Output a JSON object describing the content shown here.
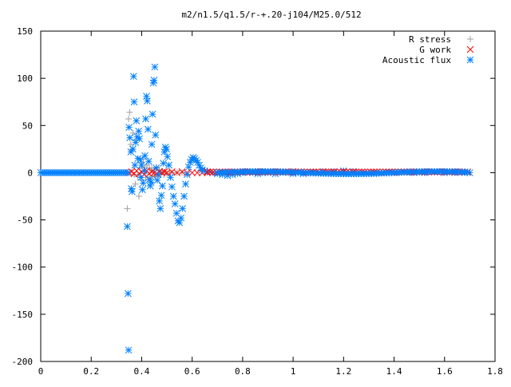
{
  "chart_data": {
    "type": "scatter",
    "title": "m2/n1.5/q1.5/r-+.20-j104/M25.0/512",
    "xlabel": "",
    "ylabel": "",
    "xlim": [
      0,
      1.8
    ],
    "ylim": [
      -200,
      150
    ],
    "xticks": [
      0,
      0.2,
      0.4,
      0.6,
      0.8,
      1,
      1.2,
      1.4,
      1.6,
      1.8
    ],
    "xtick_labels": [
      "0",
      "0.2",
      "0.4",
      "0.6",
      "0.8",
      "1",
      "1.2",
      "1.4",
      "1.6",
      "1.8"
    ],
    "yticks": [
      -200,
      -150,
      -100,
      -50,
      0,
      50,
      100,
      150
    ],
    "ytick_labels": [
      "-200",
      "-150",
      "-100",
      "-50",
      "0",
      "50",
      "100",
      "150"
    ],
    "grid": false,
    "legend_position": "top-right",
    "series": [
      {
        "name": "R stress",
        "marker": "plus",
        "color": "#a0a0a0",
        "points": [
          [
            0.343,
            -38
          ],
          [
            0.348,
            57
          ],
          [
            0.352,
            64
          ],
          [
            0.357,
            30
          ],
          [
            0.361,
            24
          ],
          [
            0.366,
            42
          ],
          [
            0.37,
            -2
          ],
          [
            0.375,
            -12
          ],
          [
            0.38,
            34
          ],
          [
            0.384,
            -4
          ],
          [
            0.389,
            -25
          ],
          [
            0.393,
            5
          ],
          [
            0.398,
            10
          ],
          [
            0.402,
            -8
          ],
          [
            0.407,
            14
          ],
          [
            0.412,
            6
          ],
          [
            0.416,
            -5
          ],
          [
            0.421,
            8
          ],
          [
            0.426,
            -7
          ],
          [
            0.43,
            4
          ],
          [
            0.435,
            -6
          ],
          [
            0.44,
            5
          ],
          [
            0.444,
            -3
          ],
          [
            0.449,
            3
          ],
          [
            0.454,
            -4
          ],
          [
            0.459,
            6
          ],
          [
            0.464,
            -2
          ],
          [
            0.47,
            3
          ],
          [
            0.476,
            -1
          ],
          [
            0.482,
            2
          ],
          [
            0.488,
            -2
          ],
          [
            0.494,
            1
          ],
          [
            0.5,
            -1
          ],
          [
            0.51,
            1
          ],
          [
            0.52,
            0
          ],
          [
            0.54,
            0
          ],
          [
            0.56,
            0
          ]
        ]
      },
      {
        "name": "G work",
        "marker": "cross",
        "color": "#ff0000",
        "points": [
          [
            0.35,
            0
          ],
          [
            0.36,
            1
          ],
          [
            0.37,
            -1
          ],
          [
            0.38,
            2
          ],
          [
            0.39,
            -1
          ],
          [
            0.4,
            1
          ],
          [
            0.41,
            -2
          ],
          [
            0.42,
            2
          ],
          [
            0.43,
            -1
          ],
          [
            0.44,
            1
          ],
          [
            0.45,
            0
          ],
          [
            0.46,
            -1
          ],
          [
            0.47,
            1
          ],
          [
            0.48,
            0
          ],
          [
            0.49,
            1
          ],
          [
            0.5,
            0
          ],
          [
            0.52,
            1
          ],
          [
            0.54,
            0
          ],
          [
            0.56,
            1
          ],
          [
            0.58,
            0
          ],
          [
            0.6,
            0
          ],
          [
            0.62,
            0
          ],
          [
            0.64,
            0
          ],
          [
            0.66,
            0
          ],
          [
            0.7,
            0
          ],
          [
            0.75,
            0
          ],
          [
            0.8,
            1
          ],
          [
            0.85,
            1
          ],
          [
            0.9,
            1
          ],
          [
            0.95,
            1
          ],
          [
            1.0,
            1
          ],
          [
            1.05,
            0
          ],
          [
            1.1,
            0
          ]
        ]
      },
      {
        "name": "Acoustic flux",
        "marker": "star",
        "color": "#0080ff",
        "points": [
          [
            0.343,
            -57
          ],
          [
            0.346,
            -128
          ],
          [
            0.348,
            -188
          ],
          [
            0.35,
            48
          ],
          [
            0.353,
            37
          ],
          [
            0.357,
            22
          ],
          [
            0.359,
            -17
          ],
          [
            0.362,
            -20
          ],
          [
            0.365,
            25
          ],
          [
            0.368,
            102
          ],
          [
            0.37,
            75
          ],
          [
            0.373,
            8
          ],
          [
            0.376,
            32
          ],
          [
            0.379,
            55
          ],
          [
            0.382,
            38
          ],
          [
            0.385,
            15
          ],
          [
            0.388,
            44
          ],
          [
            0.391,
            36
          ],
          [
            0.394,
            14
          ],
          [
            0.397,
            -5
          ],
          [
            0.4,
            8
          ],
          [
            0.403,
            -18
          ],
          [
            0.406,
            -11
          ],
          [
            0.41,
            2
          ],
          [
            0.413,
            18
          ],
          [
            0.416,
            57
          ],
          [
            0.419,
            81
          ],
          [
            0.422,
            76
          ],
          [
            0.425,
            46
          ],
          [
            0.428,
            12
          ],
          [
            0.431,
            -7
          ],
          [
            0.434,
            -14
          ],
          [
            0.437,
            -10
          ],
          [
            0.44,
            30
          ],
          [
            0.443,
            62
          ],
          [
            0.446,
            95
          ],
          [
            0.449,
            98
          ],
          [
            0.452,
            112
          ],
          [
            0.455,
            40
          ],
          [
            0.458,
            5
          ],
          [
            0.462,
            -8
          ],
          [
            0.466,
            -2
          ],
          [
            0.47,
            -30
          ],
          [
            0.474,
            -38
          ],
          [
            0.478,
            -24
          ],
          [
            0.482,
            -14
          ],
          [
            0.486,
            10
          ],
          [
            0.49,
            22
          ],
          [
            0.494,
            27
          ],
          [
            0.498,
            25
          ],
          [
            0.502,
            17
          ],
          [
            0.508,
            8
          ],
          [
            0.514,
            -5
          ],
          [
            0.52,
            -15
          ],
          [
            0.526,
            -25
          ],
          [
            0.532,
            -33
          ],
          [
            0.538,
            -43
          ],
          [
            0.544,
            -51
          ],
          [
            0.55,
            -53
          ],
          [
            0.556,
            -48
          ],
          [
            0.562,
            -38
          ],
          [
            0.568,
            -25
          ],
          [
            0.574,
            -12
          ],
          [
            0.58,
            -2
          ],
          [
            0.586,
            6
          ],
          [
            0.592,
            11
          ],
          [
            0.598,
            14
          ],
          [
            0.604,
            16
          ],
          [
            0.61,
            15
          ],
          [
            0.616,
            13
          ],
          [
            0.622,
            11
          ],
          [
            0.628,
            8
          ],
          [
            0.634,
            5
          ],
          [
            0.64,
            3
          ],
          [
            0.65,
            2
          ],
          [
            0.66,
            1
          ],
          [
            0.68,
            0
          ],
          [
            0.7,
            -1
          ],
          [
            0.72,
            -2
          ],
          [
            0.74,
            -3
          ],
          [
            0.76,
            -2
          ],
          [
            0.78,
            -1
          ],
          [
            0.8,
            0
          ],
          [
            0.82,
            1
          ],
          [
            0.84,
            0
          ],
          [
            0.86,
            -1
          ],
          [
            0.88,
            0
          ],
          [
            0.9,
            0
          ],
          [
            0.93,
            -1
          ],
          [
            0.96,
            0
          ],
          [
            1.0,
            -1
          ],
          [
            1.04,
            -1
          ],
          [
            1.08,
            0
          ],
          [
            1.12,
            1
          ],
          [
            1.16,
            1
          ],
          [
            1.2,
            2
          ],
          [
            1.24,
            1
          ],
          [
            1.28,
            0
          ],
          [
            1.32,
            -1
          ],
          [
            1.36,
            0
          ],
          [
            1.4,
            0
          ],
          [
            1.44,
            1
          ],
          [
            1.48,
            0
          ],
          [
            1.52,
            0
          ],
          [
            1.56,
            1
          ],
          [
            1.6,
            0
          ],
          [
            1.64,
            0
          ],
          [
            1.68,
            0
          ],
          [
            1.7,
            0
          ]
        ]
      }
    ]
  }
}
